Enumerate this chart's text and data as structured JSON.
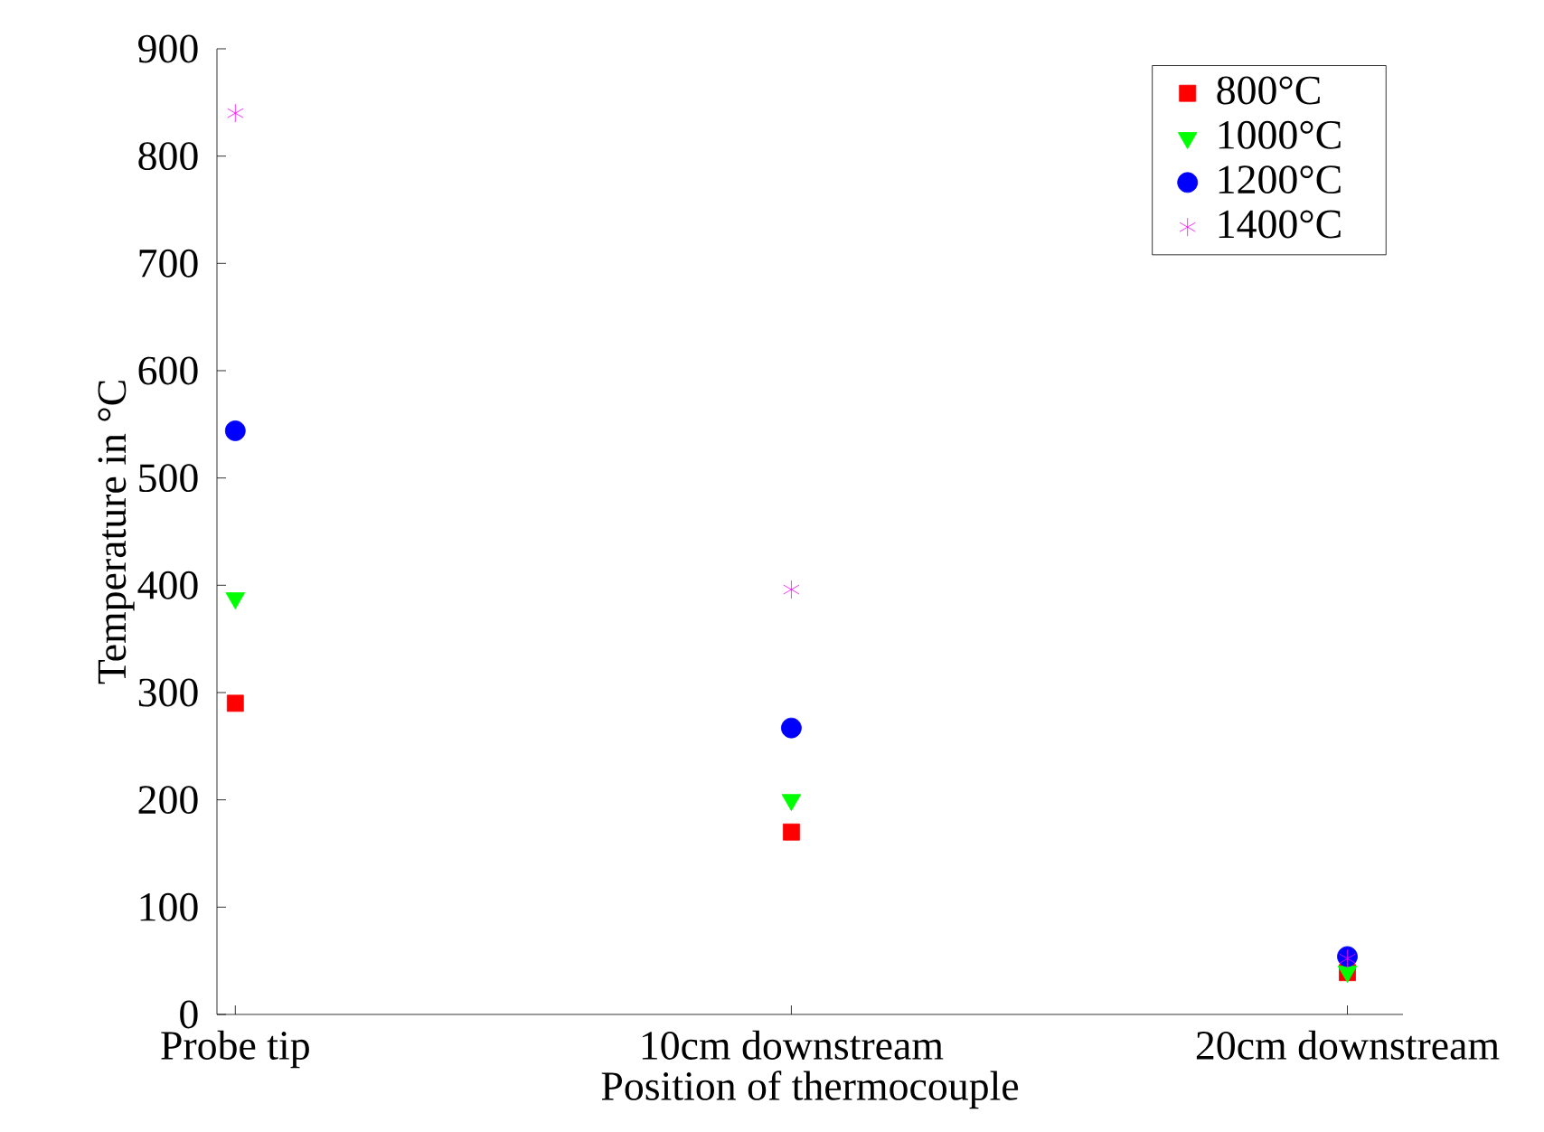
{
  "chart_data": {
    "type": "scatter",
    "xlabel": "Position of thermocouple",
    "ylabel": "Temperature in °C",
    "categories": [
      "Probe tip",
      "10cm downstream",
      "20cm downstream"
    ],
    "series": [
      {
        "name": "800°C",
        "color": "#ff0000",
        "marker": "square",
        "values": [
          290,
          170,
          39
        ]
      },
      {
        "name": "1000°C",
        "color": "#00ff00",
        "marker": "triangle",
        "values": [
          388,
          200,
          40
        ]
      },
      {
        "name": "1200°C",
        "color": "#0000ff",
        "marker": "circle",
        "values": [
          544,
          267,
          54
        ]
      },
      {
        "name": "1400°C",
        "color": "#ff00ff",
        "marker": "cross",
        "values": [
          840,
          396,
          52
        ]
      }
    ],
    "ylim": [
      0,
      900
    ],
    "yticks": [
      0,
      100,
      200,
      300,
      400,
      500,
      600,
      700,
      800,
      900
    ],
    "grid": false,
    "legend": "top right"
  }
}
